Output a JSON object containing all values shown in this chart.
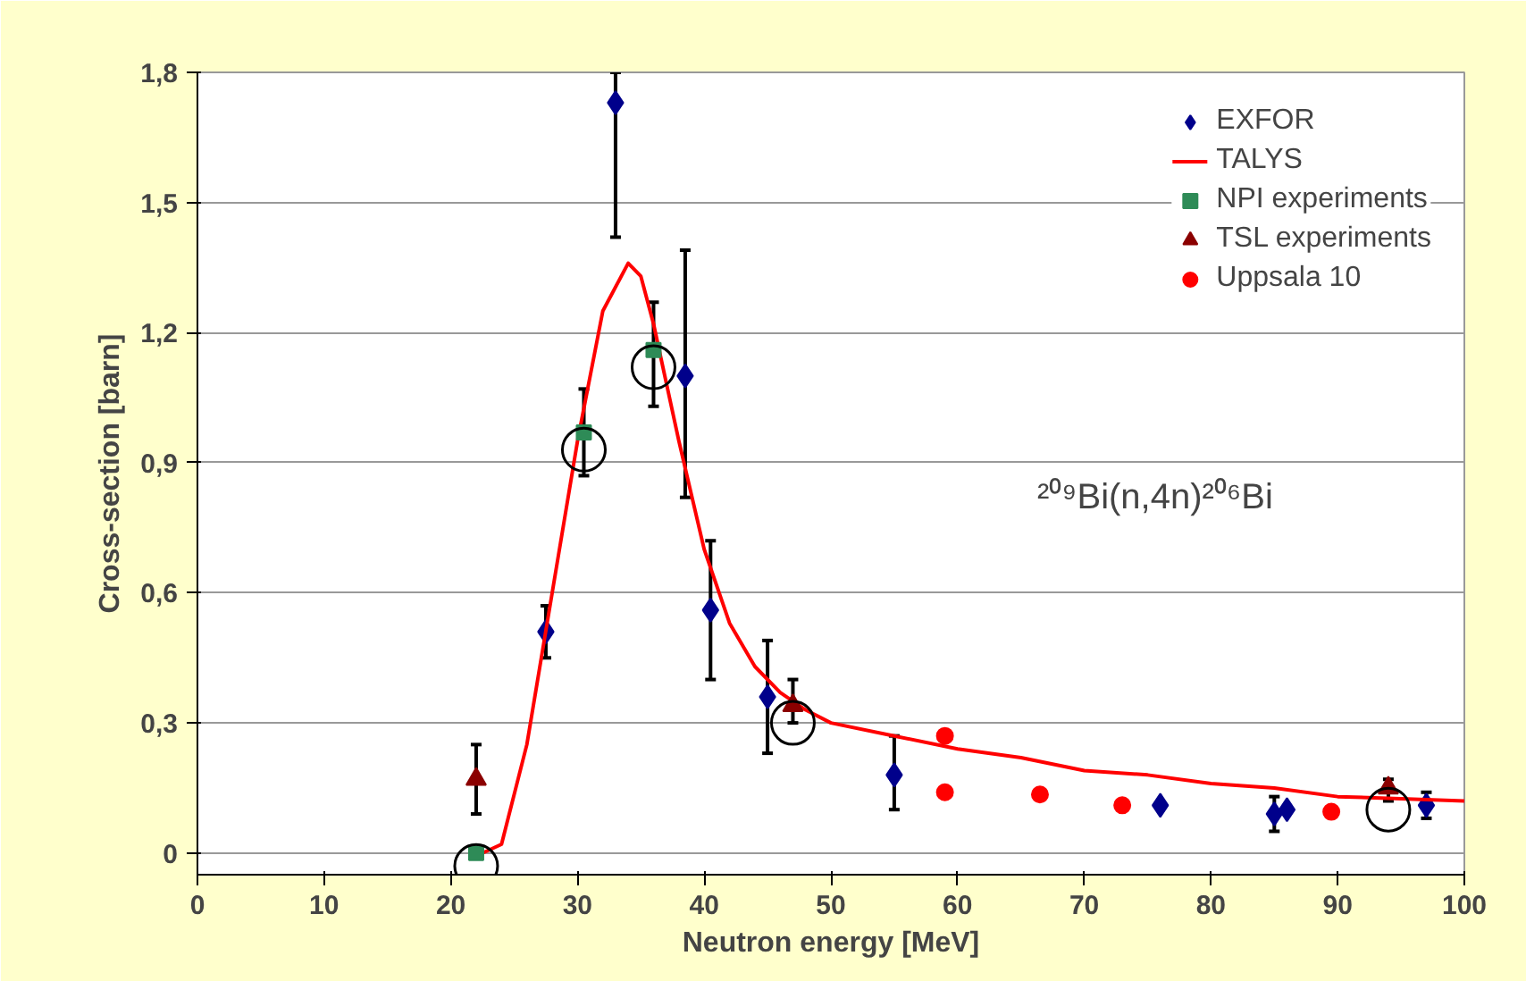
{
  "chart_data": {
    "type": "scatter",
    "xlabel": "Neutron energy [MeV]",
    "ylabel": "Cross-section [barn]",
    "xlim": [
      0,
      100
    ],
    "xticks": [
      0,
      10,
      20,
      30,
      40,
      50,
      60,
      70,
      80,
      90,
      100
    ],
    "ylim": [
      -0.05,
      1.8
    ],
    "yticks": [
      {
        "value": 0,
        "label": "0"
      },
      {
        "value": 0.3,
        "label": "0,3"
      },
      {
        "value": 0.6,
        "label": "0,6"
      },
      {
        "value": 0.9,
        "label": "0,9"
      },
      {
        "value": 1.2,
        "label": "1,2"
      },
      {
        "value": 1.5,
        "label": "1,5"
      },
      {
        "value": 1.8,
        "label": "1,8"
      }
    ],
    "grid": "y",
    "legend": "top right",
    "annotations": [
      "²⁰⁹Bi(n,4n)²⁰⁶Bi"
    ],
    "series": [
      {
        "name": "EXFOR",
        "marker": "diamond",
        "color": "#00008b",
        "x": [
          27.5,
          33,
          38.5,
          40.5,
          45,
          55,
          76,
          85,
          86,
          97
        ],
        "values": [
          0.51,
          1.73,
          1.1,
          0.56,
          0.36,
          0.18,
          0.11,
          0.09,
          0.1,
          0.11
        ],
        "errors": [
          [
            0.45,
            0.57
          ],
          [
            1.42,
            1.8
          ],
          [
            0.82,
            1.39
          ],
          [
            0.4,
            0.72
          ],
          [
            0.23,
            0.49
          ],
          [
            0.1,
            0.27
          ],
          null,
          [
            0.05,
            0.13
          ],
          null,
          [
            0.08,
            0.14
          ]
        ]
      },
      {
        "name": "TALYS",
        "type": "line",
        "marker": "none",
        "color": "#ff0000",
        "x": [
          22.5,
          24,
          26,
          28,
          30,
          32,
          34,
          35,
          36,
          38,
          40,
          42,
          44,
          46,
          48,
          50,
          55,
          60,
          65,
          70,
          75,
          80,
          85,
          90,
          95,
          100
        ],
        "values": [
          0,
          0.02,
          0.25,
          0.6,
          0.95,
          1.25,
          1.36,
          1.33,
          1.22,
          0.95,
          0.7,
          0.53,
          0.43,
          0.37,
          0.33,
          0.3,
          0.27,
          0.24,
          0.22,
          0.19,
          0.18,
          0.16,
          0.15,
          0.13,
          0.125,
          0.12
        ]
      },
      {
        "name": "NPI experiments",
        "marker": "square",
        "color": "#2e8b57",
        "x": [
          22,
          30.5,
          36
        ],
        "values": [
          0.0,
          0.97,
          1.16
        ],
        "errors": [
          null,
          [
            0.87,
            1.07
          ],
          [
            1.03,
            1.27
          ]
        ]
      },
      {
        "name": "TSL experiments",
        "marker": "triangle",
        "color": "#8b0000",
        "x": [
          22,
          47,
          94
        ],
        "values": [
          0.17,
          0.34,
          0.15
        ],
        "errors": [
          [
            0.09,
            0.25
          ],
          [
            0.3,
            0.4
          ],
          [
            0.12,
            0.17
          ]
        ]
      },
      {
        "name": "Uppsala 10",
        "marker": "circle",
        "color": "#ff0000",
        "x": [
          59,
          59,
          66.5,
          73,
          89.5
        ],
        "values": [
          0.27,
          0.14,
          0.135,
          0.11,
          0.095
        ]
      },
      {
        "marker": "circle",
        "color": "#000000",
        "x": [
          22,
          30.5,
          36,
          47,
          94
        ],
        "values": [
          -0.03,
          0.93,
          1.12,
          0.3,
          0.1
        ]
      }
    ]
  }
}
